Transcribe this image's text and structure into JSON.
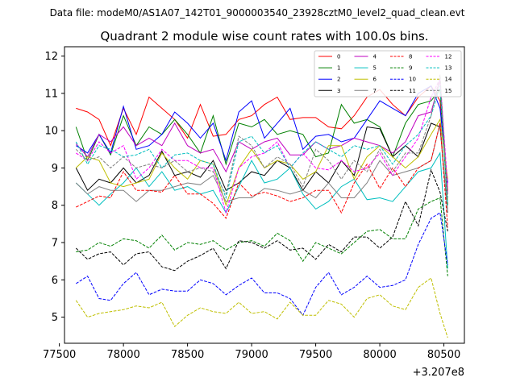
{
  "header": {
    "file_label": "Data file: modeM0/AS1A07_142T01_9000003540_23928cztM0_level2_quad_clean.evt"
  },
  "chart_data": {
    "type": "line",
    "title": "Quadrant 2 module wise count rates with 100.0s bins.",
    "xlabel": "",
    "ylabel": "",
    "x_offset_label": "+3.207e8",
    "xlim": [
      77540,
      80660
    ],
    "ylim": [
      4.3,
      12.25
    ],
    "x_ticks": [
      77500,
      78000,
      78500,
      79000,
      79500,
      80000,
      80500
    ],
    "x_tick_labels": [
      "77500",
      "78000",
      "78500",
      "79000",
      "79500",
      "80000",
      "80500"
    ],
    "y_ticks": [
      5,
      6,
      7,
      8,
      9,
      10,
      11,
      12
    ],
    "y_tick_labels": [
      "5",
      "6",
      "7",
      "8",
      "9",
      "10",
      "11",
      "12"
    ],
    "x": [
      77630,
      77720,
      77810,
      77900,
      78000,
      78100,
      78200,
      78300,
      78400,
      78500,
      78600,
      78700,
      78800,
      78900,
      79000,
      79100,
      79200,
      79300,
      79400,
      79500,
      79600,
      79700,
      79800,
      79900,
      80000,
      80100,
      80200,
      80300,
      80400,
      80470,
      80530
    ],
    "series": [
      {
        "name": "0",
        "color": "#ff0000",
        "dash": "solid",
        "values": [
          10.6,
          10.5,
          10.3,
          9.6,
          10.6,
          9.9,
          10.9,
          10.6,
          10.3,
          9.8,
          10.7,
          9.85,
          9.9,
          10.3,
          10.4,
          10.7,
          10.9,
          10.3,
          10.35,
          10.35,
          10.1,
          10.05,
          10.4,
          10.9,
          11.1,
          10.7,
          10.4,
          10.9,
          11.2,
          10.8,
          8.4
        ]
      },
      {
        "name": "1",
        "color": "#008000",
        "dash": "solid",
        "values": [
          10.1,
          9.2,
          9.9,
          9.35,
          10.4,
          9.6,
          10.1,
          9.9,
          10.3,
          9.9,
          9.4,
          10.4,
          9.1,
          10.2,
          10.1,
          10.3,
          9.9,
          10.0,
          9.9,
          9.3,
          9.4,
          10.7,
          10.2,
          10.3,
          10.1,
          9.3,
          10.2,
          10.7,
          10.8,
          11.1,
          8.0
        ]
      },
      {
        "name": "2",
        "color": "#0000ff",
        "dash": "solid",
        "values": [
          9.6,
          9.4,
          9.9,
          9.4,
          10.65,
          9.5,
          9.6,
          9.9,
          10.5,
          10.2,
          9.8,
          10.2,
          9.2,
          10.5,
          10.8,
          9.8,
          10.2,
          10.6,
          9.5,
          9.85,
          9.9,
          9.7,
          9.8,
          10.3,
          10.8,
          10.6,
          10.4,
          11.0,
          11.2,
          10.6,
          8.6
        ]
      },
      {
        "name": "3",
        "color": "#000000",
        "dash": "solid",
        "values": [
          9.0,
          8.4,
          8.7,
          8.6,
          9.0,
          8.6,
          8.8,
          9.45,
          8.8,
          8.9,
          8.75,
          9.2,
          8.4,
          8.6,
          8.9,
          8.8,
          9.2,
          9.0,
          8.4,
          8.9,
          8.6,
          9.2,
          8.8,
          10.1,
          10.05,
          9.3,
          9.6,
          9.3,
          10.2,
          10.1,
          7.8
        ]
      },
      {
        "name": "4",
        "color": "#bf00bf",
        "dash": "solid",
        "values": [
          9.65,
          9.3,
          9.9,
          9.7,
          10.1,
          9.6,
          9.8,
          9.6,
          10.2,
          9.6,
          9.4,
          9.5,
          8.9,
          9.7,
          9.5,
          9.7,
          9.8,
          9.35,
          9.35,
          9.7,
          9.5,
          9.6,
          9.8,
          9.7,
          9.6,
          9.4,
          9.7,
          10.4,
          10.5,
          11.35,
          8.3
        ]
      },
      {
        "name": "5",
        "color": "#00bfbf",
        "dash": "solid",
        "values": [
          8.6,
          8.3,
          8.0,
          8.3,
          8.6,
          9.0,
          8.5,
          8.9,
          8.4,
          8.5,
          8.3,
          8.4,
          7.8,
          8.5,
          9.2,
          8.6,
          8.7,
          9.0,
          8.3,
          7.9,
          8.1,
          8.5,
          8.7,
          8.15,
          8.2,
          8.1,
          8.5,
          8.9,
          9.0,
          9.4,
          6.3
        ]
      },
      {
        "name": "6",
        "color": "#bfbf00",
        "dash": "solid",
        "values": [
          9.0,
          9.3,
          9.2,
          8.6,
          8.5,
          8.6,
          8.7,
          9.4,
          9.0,
          8.7,
          9.2,
          9.1,
          8.0,
          9.0,
          9.5,
          9.0,
          9.2,
          9.1,
          8.7,
          8.9,
          9.6,
          9.6,
          8.7,
          9.3,
          9.6,
          9.3,
          9.0,
          9.3,
          9.9,
          10.3,
          8.7
        ]
      },
      {
        "name": "7",
        "color": "#808080",
        "dash": "solid",
        "values": [
          8.6,
          8.3,
          8.5,
          8.4,
          8.4,
          8.1,
          8.4,
          8.4,
          8.5,
          8.6,
          8.55,
          8.8,
          8.1,
          8.2,
          8.2,
          8.45,
          8.4,
          8.3,
          8.4,
          8.2,
          8.6,
          8.2,
          8.2,
          8.6,
          9.2,
          8.8,
          8.9,
          9.0,
          9.2,
          10.2,
          7.8
        ]
      },
      {
        "name": "8",
        "color": "#ff0000",
        "dash": "dashed",
        "values": [
          7.95,
          8.1,
          8.25,
          8.2,
          8.9,
          8.4,
          8.4,
          8.35,
          8.8,
          8.3,
          8.3,
          8.05,
          7.65,
          8.6,
          8.25,
          8.35,
          8.25,
          8.1,
          8.2,
          8.4,
          8.4,
          7.8,
          8.6,
          9.1,
          8.45,
          9.0,
          8.5,
          9.0,
          9.2,
          10.2,
          7.4
        ]
      },
      {
        "name": "9",
        "color": "#008000",
        "dash": "dashed",
        "values": [
          6.75,
          6.8,
          7.0,
          6.9,
          7.1,
          7.05,
          6.85,
          7.2,
          6.8,
          7.0,
          6.95,
          7.05,
          6.8,
          7.0,
          7.05,
          6.9,
          7.25,
          7.05,
          6.5,
          7.0,
          6.85,
          6.7,
          7.0,
          7.3,
          7.35,
          7.1,
          7.1,
          7.9,
          8.1,
          8.2,
          6.1
        ]
      },
      {
        "name": "10",
        "color": "#0000ff",
        "dash": "dashed",
        "values": [
          5.9,
          6.1,
          5.5,
          5.45,
          5.9,
          6.2,
          5.6,
          5.75,
          5.7,
          5.7,
          6.0,
          5.9,
          5.6,
          5.85,
          6.05,
          5.65,
          5.65,
          5.5,
          5.05,
          5.8,
          6.2,
          5.6,
          5.8,
          6.1,
          5.8,
          5.85,
          6.0,
          6.95,
          7.65,
          7.8,
          6.4
        ]
      },
      {
        "name": "11",
        "color": "#000000",
        "dash": "dashed",
        "values": [
          6.85,
          6.55,
          6.7,
          6.75,
          6.4,
          6.7,
          6.75,
          6.35,
          6.25,
          6.5,
          6.65,
          6.85,
          6.3,
          7.05,
          7.0,
          6.85,
          7.05,
          6.8,
          6.85,
          6.55,
          6.95,
          6.75,
          7.15,
          7.15,
          6.85,
          7.15,
          8.1,
          7.45,
          8.95,
          8.35,
          7.3
        ]
      },
      {
        "name": "12",
        "color": "#ff00ff",
        "dash": "dashed",
        "values": [
          9.4,
          9.2,
          9.7,
          9.4,
          9.6,
          8.7,
          9.0,
          9.5,
          9.2,
          9.2,
          9.0,
          9.0,
          7.8,
          9.0,
          9.3,
          9.4,
          9.7,
          9.0,
          9.4,
          9.0,
          8.95,
          9.2,
          8.9,
          9.0,
          9.4,
          8.8,
          9.3,
          9.8,
          10.9,
          11.4,
          8.5
        ]
      },
      {
        "name": "13",
        "color": "#00bfbf",
        "dash": "dashed",
        "values": [
          9.7,
          9.1,
          9.6,
          9.5,
          9.3,
          9.35,
          9.5,
          9.0,
          9.35,
          9.4,
          9.2,
          9.1,
          8.2,
          9.7,
          9.85,
          9.4,
          9.6,
          9.0,
          9.4,
          9.7,
          9.5,
          9.3,
          9.6,
          9.5,
          9.6,
          9.1,
          9.6,
          9.9,
          10.4,
          11.2,
          8.0
        ]
      },
      {
        "name": "14",
        "color": "#bfbf00",
        "dash": "dashed",
        "values": [
          5.45,
          5.0,
          5.1,
          5.15,
          5.2,
          5.3,
          5.25,
          5.4,
          4.75,
          5.05,
          5.25,
          5.15,
          5.1,
          5.4,
          5.1,
          5.15,
          4.95,
          5.4,
          5.05,
          5.05,
          5.45,
          5.35,
          5.0,
          5.5,
          5.6,
          5.3,
          5.2,
          5.8,
          6.05,
          5.1,
          4.45
        ]
      },
      {
        "name": "15",
        "color": "#808080",
        "dash": "dashed",
        "values": [
          9.5,
          9.2,
          9.3,
          9.0,
          9.3,
          9.0,
          9.1,
          9.0,
          9.2,
          8.9,
          9.0,
          8.9,
          8.3,
          9.85,
          9.6,
          9.0,
          9.3,
          9.1,
          8.5,
          9.5,
          9.2,
          8.7,
          9.2,
          8.9,
          9.5,
          8.9,
          9.4,
          9.4,
          10.4,
          11.5,
          8.2
        ]
      }
    ],
    "legend_position": "top-right",
    "legend_columns": 4
  }
}
